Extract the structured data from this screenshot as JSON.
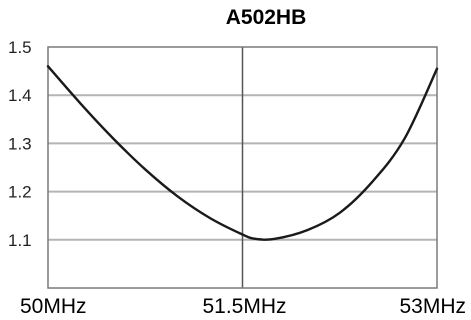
{
  "chart_data": {
    "type": "line",
    "title": "A502HB",
    "xlabel": "",
    "ylabel": "",
    "x_tick_labels": [
      "50MHz",
      "51.5MHz",
      "53MHz"
    ],
    "x_tick_values": [
      50,
      51.5,
      53
    ],
    "y_tick_labels": [
      "1.5",
      "1.4",
      "1.3",
      "1.2",
      "1.1"
    ],
    "y_tick_values": [
      1.5,
      1.4,
      1.3,
      1.2,
      1.1
    ],
    "xlim": [
      50,
      53
    ],
    "ylim": [
      1.0,
      1.5
    ],
    "grid": true,
    "legend": "none",
    "colors": {
      "curve": "#1a1a1a",
      "grid": "#b4b4b4",
      "frame": "#7a7a7a",
      "center_line": "#555555"
    },
    "series": [
      {
        "x": [
          50.0,
          50.25,
          50.5,
          50.75,
          51.0,
          51.25,
          51.5,
          51.6,
          51.75,
          52.0,
          52.25,
          52.5,
          52.75,
          53.0
        ],
        "values": [
          1.46,
          1.383,
          1.311,
          1.246,
          1.19,
          1.145,
          1.111,
          1.102,
          1.102,
          1.12,
          1.156,
          1.22,
          1.31,
          1.455
        ]
      }
    ]
  }
}
